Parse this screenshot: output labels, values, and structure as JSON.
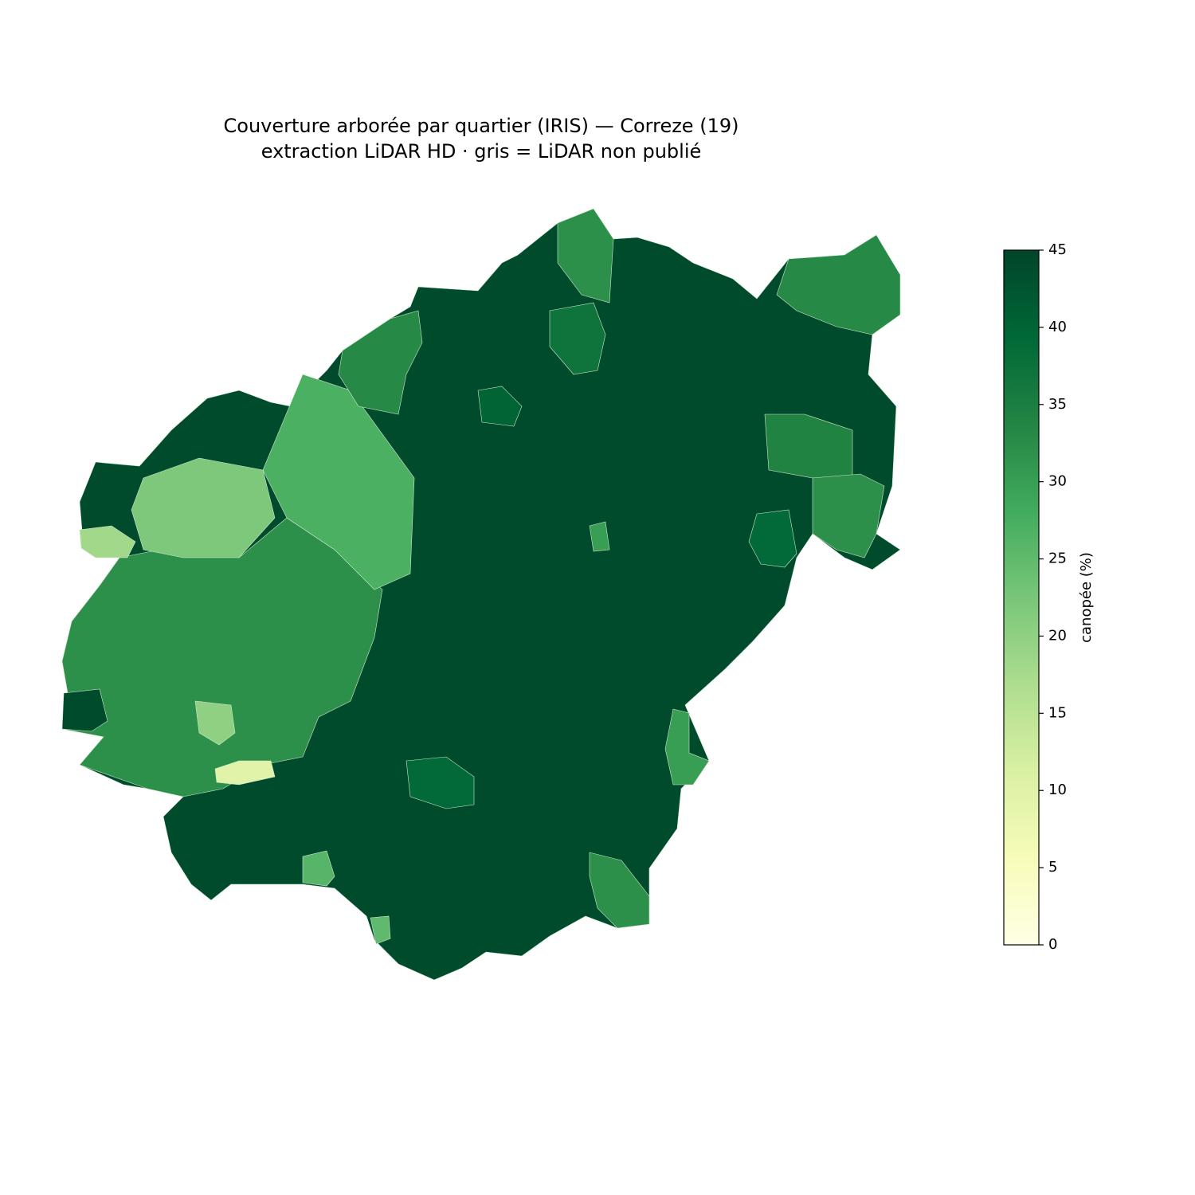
{
  "chart_data": {
    "type": "choropleth",
    "title": "Couverture arborée par quartier (IRIS) — Correze (19)",
    "subtitle": "extraction LiDAR HD · gris = LiDAR non publié",
    "colormap": "YlGn",
    "colorbar_label": "canopée (%)",
    "clim": [
      0,
      45
    ],
    "cticks": [
      0,
      5,
      10,
      15,
      20,
      25,
      30,
      35,
      40,
      45
    ],
    "values": [
      44,
      32,
      22,
      18,
      27,
      33,
      32,
      37,
      33,
      34,
      32,
      20,
      10,
      39,
      30,
      32,
      26,
      25,
      40,
      39,
      44,
      30
    ]
  }
}
